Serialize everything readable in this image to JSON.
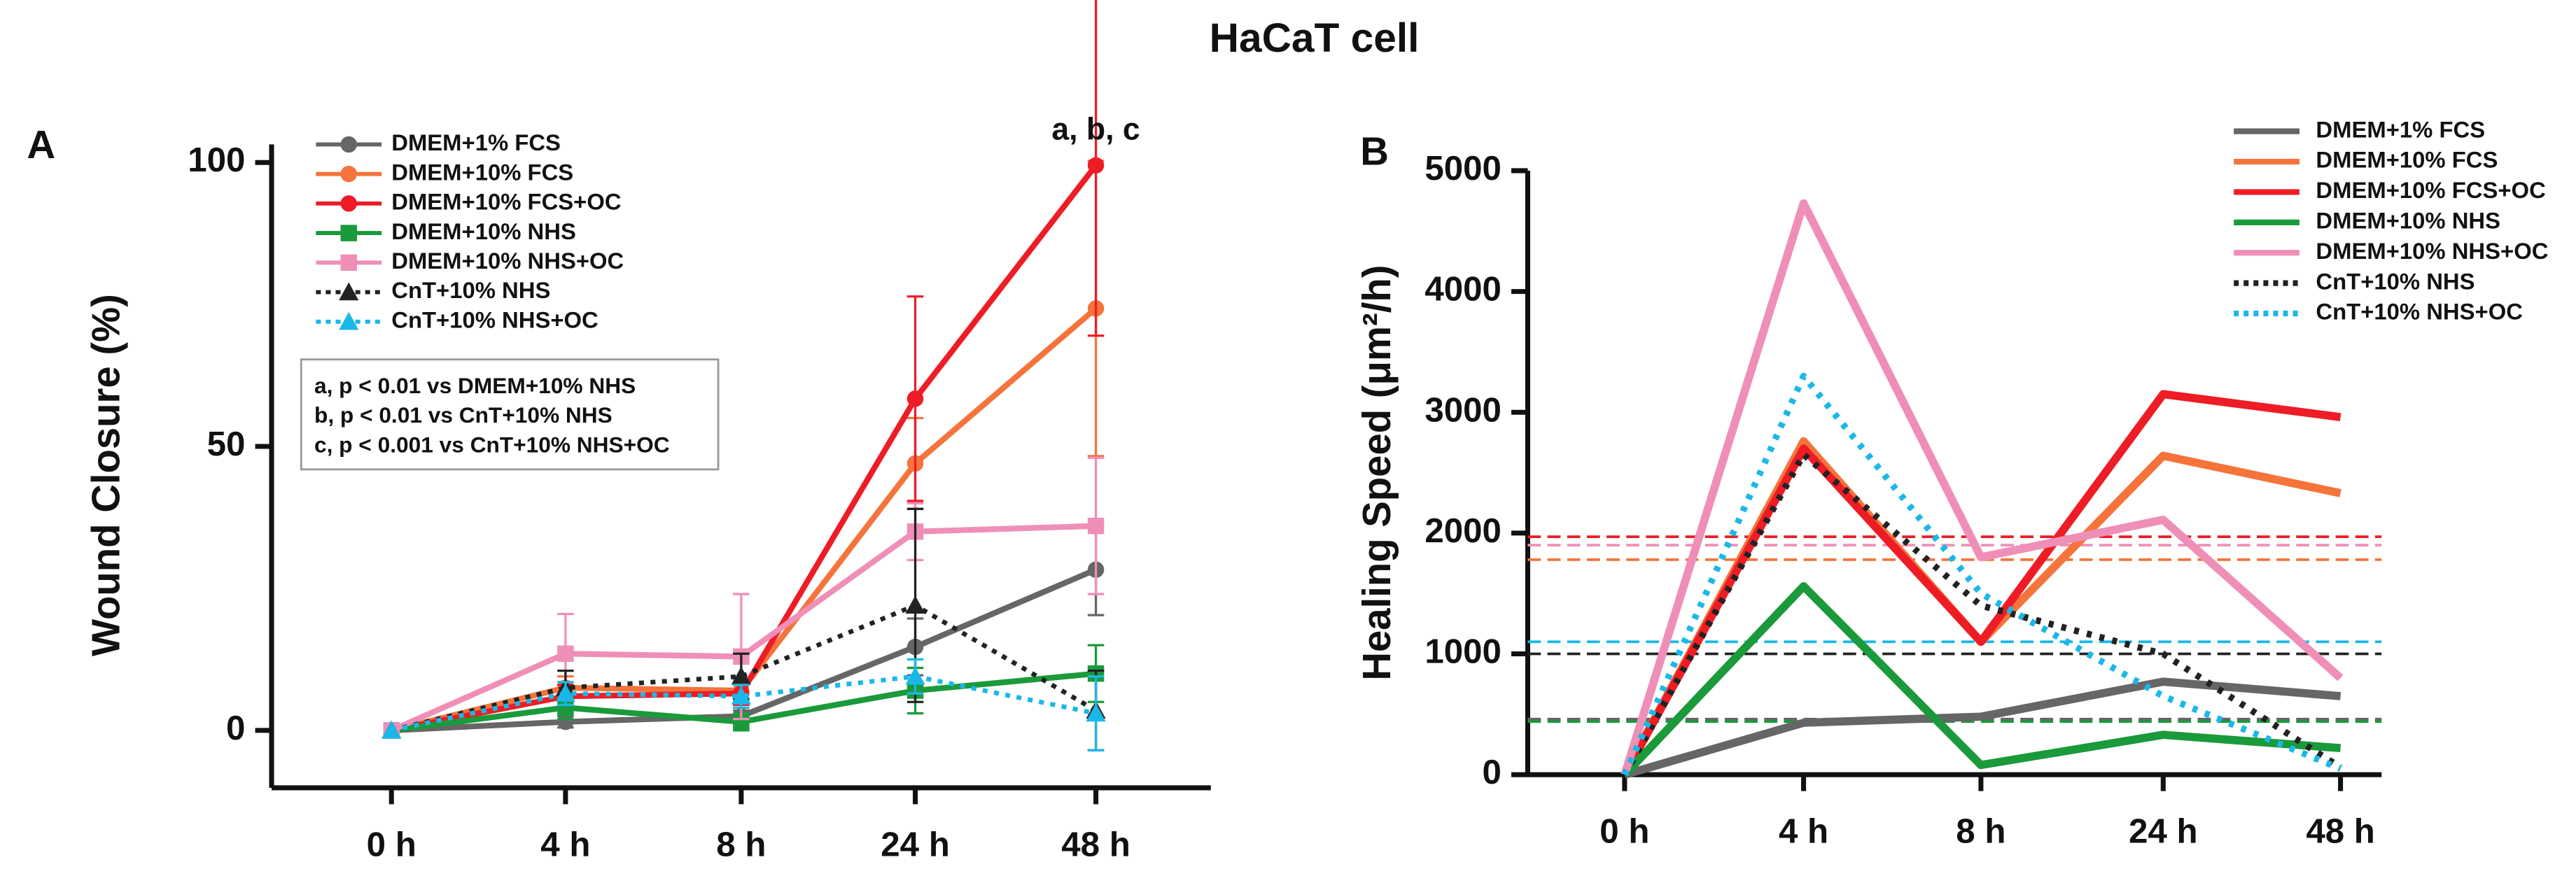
{
  "title": "HaCaT cell",
  "chart_data": [
    {
      "type": "line",
      "panel_label": "A",
      "y_label": "Wound Closure (%)",
      "categories": [
        "0 h",
        "4 h",
        "8 h",
        "24 h",
        "48 h"
      ],
      "ylim": [
        -5,
        100
      ],
      "yticks": [
        0,
        50,
        100
      ],
      "annotation": "a, b, c",
      "stats": [
        "a, p < 0.01 vs DMEM+10% NHS",
        "b, p < 0.01 vs CnT+10% NHS",
        "c, p < 0.001 vs CnT+10% NHS+OC"
      ],
      "series": [
        {
          "name": "DMEM+1% FCS",
          "color": "#666666",
          "marker": "circle",
          "dashed": false,
          "values": [
            0,
            1.5,
            2.5,
            14.7,
            28.3
          ],
          "errors": [
            0,
            1,
            1,
            5,
            8
          ]
        },
        {
          "name": "DMEM+10% FCS",
          "color": "#f4743b",
          "marker": "circle",
          "dashed": false,
          "values": [
            0,
            7.5,
            7,
            47,
            74.3
          ],
          "errors": [
            0,
            2,
            2,
            8,
            26
          ]
        },
        {
          "name": "DMEM+10% FCS+OC",
          "color": "#ee1c25",
          "marker": "circle",
          "dashed": false,
          "values": [
            0,
            6,
            6.5,
            58.4,
            99.5
          ],
          "errors": [
            0,
            2,
            2,
            18,
            30
          ]
        },
        {
          "name": "DMEM+10% NHS",
          "color": "#1a9a3a",
          "marker": "square",
          "dashed": false,
          "values": [
            0,
            4,
            1.5,
            7,
            10
          ],
          "errors": [
            0,
            2,
            1.5,
            4,
            5
          ]
        },
        {
          "name": "DMEM+10% NHS+OC",
          "color": "#ef8fb8",
          "marker": "square",
          "dashed": false,
          "values": [
            0,
            13.5,
            13,
            35,
            36
          ],
          "errors": [
            0,
            7,
            11,
            5,
            12
          ]
        },
        {
          "name": "CnT+10% NHS",
          "color": "#222222",
          "marker": "triangle",
          "dashed": true,
          "values": [
            0,
            7.5,
            9.5,
            22,
            3.5
          ],
          "errors": [
            0,
            3,
            4,
            17,
            7
          ]
        },
        {
          "name": "CnT+10% NHS+OC",
          "color": "#1ab8e8",
          "marker": "triangle",
          "dashed": true,
          "values": [
            0,
            6.5,
            6,
            9.5,
            3
          ],
          "errors": [
            0,
            2,
            2,
            3,
            6.5
          ]
        }
      ]
    },
    {
      "type": "line",
      "panel_label": "B",
      "y_label": "Healing Speed (μm²/h)",
      "categories": [
        "0 h",
        "4 h",
        "8 h",
        "24 h",
        "48 h"
      ],
      "ylim": [
        0,
        5000
      ],
      "yticks": [
        0,
        1000,
        2000,
        3000,
        4000,
        5000
      ],
      "series": [
        {
          "name": "DMEM+1% FCS",
          "color": "#666666",
          "dashed": false,
          "values": [
            0,
            430,
            480,
            770,
            650
          ],
          "mean": 460
        },
        {
          "name": "DMEM+10% FCS",
          "color": "#f4743b",
          "dashed": false,
          "values": [
            0,
            2760,
            1100,
            2640,
            2330
          ],
          "mean": 1780
        },
        {
          "name": "DMEM+10% FCS+OC",
          "color": "#ee1c25",
          "dashed": false,
          "values": [
            0,
            2700,
            1100,
            3150,
            2960
          ],
          "mean": 1970
        },
        {
          "name": "DMEM+10% NHS",
          "color": "#1a9a3a",
          "dashed": false,
          "values": [
            0,
            1560,
            80,
            330,
            220
          ],
          "mean": 440
        },
        {
          "name": "DMEM+10% NHS+OC",
          "color": "#ef8fb8",
          "dashed": false,
          "values": [
            0,
            4730,
            1800,
            2110,
            800
          ],
          "mean": 1900
        },
        {
          "name": "CnT+10% NHS",
          "color": "#222222",
          "dashed": true,
          "values": [
            0,
            2650,
            1400,
            1000,
            60
          ],
          "mean": 1000
        },
        {
          "name": "CnT+10% NHS+OC",
          "color": "#1ab8e8",
          "dashed": true,
          "values": [
            0,
            3300,
            1500,
            650,
            50
          ],
          "mean": 1100
        }
      ]
    }
  ]
}
